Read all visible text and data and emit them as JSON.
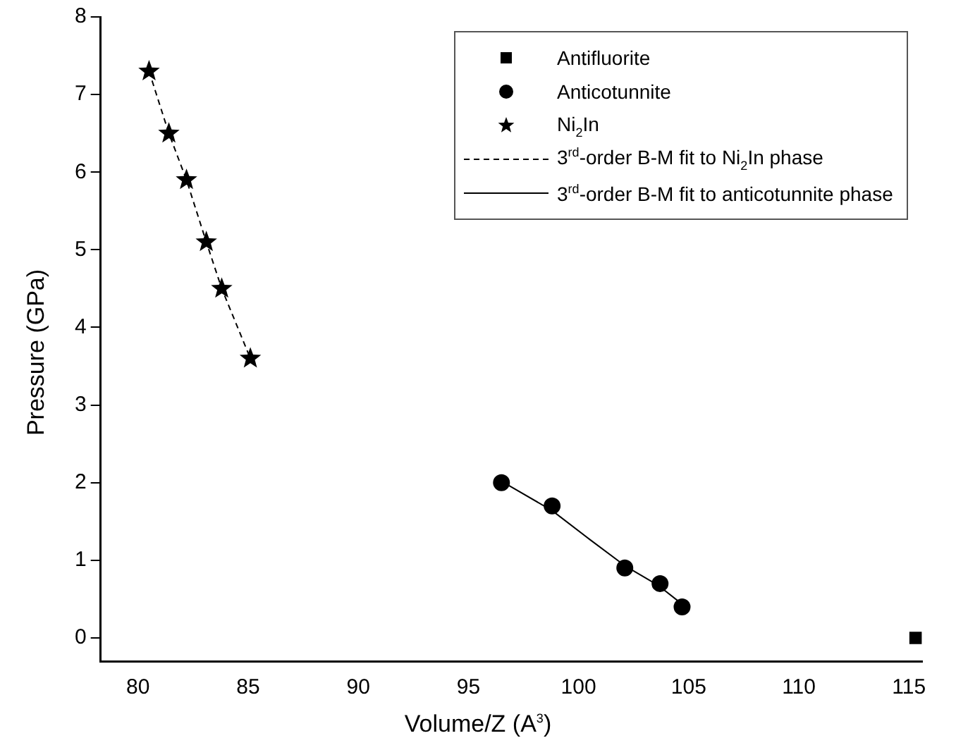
{
  "chart_data": {
    "type": "scatter",
    "xlabel": "Volume/Z (A$^{3}$)",
    "ylabel": "Pressure (GPa)",
    "xlim": [
      78.3,
      115.6
    ],
    "xticks": [
      80,
      85,
      90,
      95,
      100,
      105,
      110,
      115
    ],
    "ylim": [
      -0.3,
      8
    ],
    "yticks": [
      0,
      1,
      2,
      3,
      4,
      5,
      6,
      7,
      8
    ],
    "grid": false,
    "legend": "top right",
    "series": [
      {
        "name": "Antifluorite",
        "color": "#000000",
        "marker": "square",
        "x": [
          115.3
        ],
        "values": [
          0
        ]
      },
      {
        "name": "Anticotunnite",
        "color": "#000000",
        "marker": "circle",
        "x": [
          96.5,
          98.8,
          102.1,
          103.7,
          104.7
        ],
        "values": [
          2.0,
          1.7,
          0.9,
          0.7,
          0.4
        ]
      },
      {
        "name": "Ni$_{2}$In",
        "color": "#000000",
        "marker": "star",
        "x": [
          80.5,
          81.4,
          82.2,
          83.1,
          83.8,
          85.1
        ],
        "values": [
          7.3,
          6.5,
          5.9,
          5.1,
          4.5,
          3.6
        ]
      },
      {
        "name": "3$^{rd}$-order B-M fit to Ni$_{2}$In phase",
        "type": "line",
        "color": "#000000",
        "marker": "none",
        "line_style": "dashed",
        "x": [
          80.5,
          81.4,
          82.2,
          83.1,
          83.8,
          85.1
        ],
        "values": [
          7.3,
          6.5,
          5.9,
          5.1,
          4.5,
          3.6
        ]
      },
      {
        "name": "3$^{rd}$-order B-M fit to anticotunnite phase",
        "type": "line",
        "color": "#000000",
        "marker": "none",
        "line_style": "solid",
        "x": [
          96.8,
          98.8,
          100.5,
          102.1,
          103.6,
          104.5
        ],
        "values": [
          1.97,
          1.64,
          1.27,
          0.93,
          0.68,
          0.48
        ]
      }
    ]
  }
}
